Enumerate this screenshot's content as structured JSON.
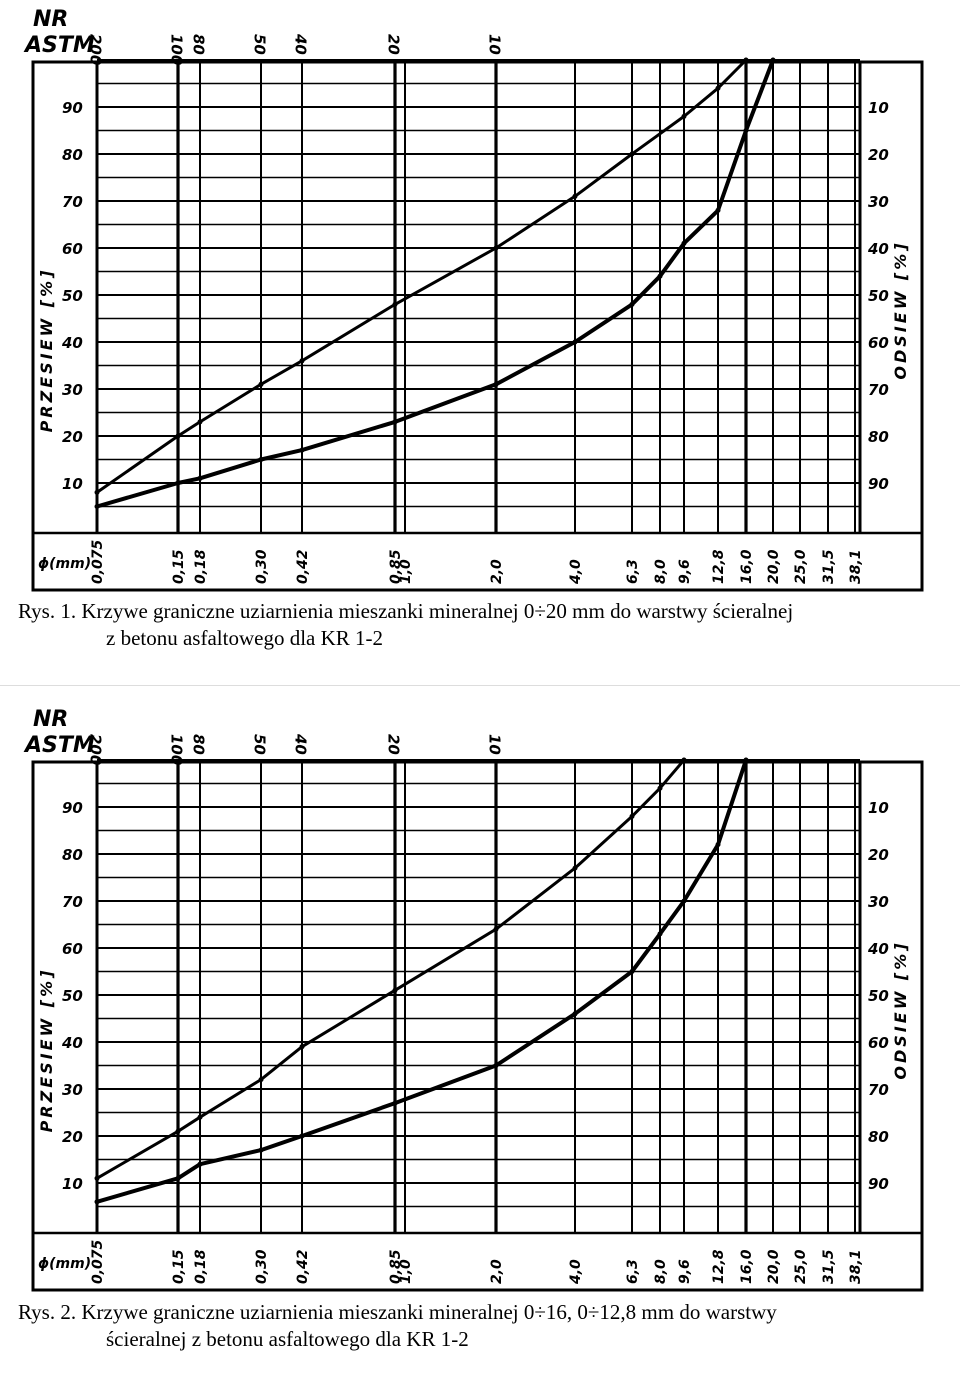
{
  "chart_data": [
    {
      "type": "line",
      "title": "Rys. 1. Krzywe graniczne uziarnienia mieszanki mineralnej 0÷20 mm do warstwy ścieralnej z betonu asfaltowego dla KR 1-2",
      "header": [
        "NR",
        "ASTM"
      ],
      "astm_labels": [
        "200",
        "100",
        "80",
        "50",
        "40",
        "20",
        "10"
      ],
      "ylabel": "PRZESIEW [%]",
      "ylabel_right": "ODSIEW [%]",
      "xlabel": "ϕ(mm)",
      "sieves": [
        "0,075",
        "0,15",
        "0,18",
        "0,30",
        "0,42",
        "0,85",
        "1,0",
        "2,0",
        "4,0",
        "6,3",
        "8,0",
        "9,6",
        "12,8",
        "16,0",
        "20,0",
        "25,0",
        "31,5",
        "38,1"
      ],
      "yticks_left": [
        "10",
        "20",
        "30",
        "40",
        "50",
        "60",
        "70",
        "80",
        "90"
      ],
      "yticks_right": [
        "90",
        "80",
        "70",
        "60",
        "50",
        "40",
        "30",
        "20",
        "10"
      ],
      "ylim": [
        0,
        100
      ],
      "grid": true,
      "series": [
        {
          "name": "upper",
          "points": [
            [
              0.075,
              8
            ],
            [
              0.15,
              20
            ],
            [
              0.18,
              23
            ],
            [
              0.3,
              31
            ],
            [
              0.42,
              36
            ],
            [
              0.85,
              48
            ],
            [
              2.0,
              60
            ],
            [
              4.0,
              71
            ],
            [
              6.3,
              80
            ],
            [
              9.6,
              88
            ],
            [
              12.8,
              94
            ],
            [
              16.0,
              100
            ]
          ]
        },
        {
          "name": "lower",
          "points": [
            [
              0.075,
              5
            ],
            [
              0.15,
              10
            ],
            [
              0.18,
              11
            ],
            [
              0.3,
              15
            ],
            [
              0.42,
              17
            ],
            [
              0.85,
              23
            ],
            [
              2.0,
              31
            ],
            [
              4.0,
              40
            ],
            [
              6.3,
              48
            ],
            [
              8.0,
              54
            ],
            [
              9.6,
              61
            ],
            [
              12.8,
              68
            ],
            [
              16.0,
              85
            ],
            [
              20.0,
              100
            ]
          ]
        }
      ]
    },
    {
      "type": "line",
      "title": "Rys. 2. Krzywe graniczne uziarnienia mieszanki mineralnej 0÷16, 0÷12,8 mm do warstwy ścieralnej z betonu asfaltowego dla KR 1-2",
      "header": [
        "NR",
        "ASTM"
      ],
      "astm_labels": [
        "200",
        "100",
        "80",
        "50",
        "40",
        "20",
        "10"
      ],
      "ylabel": "PRZESIEW [%]",
      "ylabel_right": "ODSIEW [%]",
      "xlabel": "ϕ(mm)",
      "sieves": [
        "0,075",
        "0,15",
        "0,18",
        "0,30",
        "0,42",
        "0,85",
        "1,0",
        "2,0",
        "4,0",
        "6,3",
        "8,0",
        "9,6",
        "12,8",
        "16,0",
        "20,0",
        "25,0",
        "31,5",
        "38,1"
      ],
      "yticks_left": [
        "10",
        "20",
        "30",
        "40",
        "50",
        "60",
        "70",
        "80",
        "90"
      ],
      "yticks_right": [
        "90",
        "80",
        "70",
        "60",
        "50",
        "40",
        "30",
        "20",
        "10"
      ],
      "ylim": [
        0,
        100
      ],
      "grid": true,
      "series": [
        {
          "name": "upper",
          "points": [
            [
              0.075,
              11
            ],
            [
              0.15,
              21
            ],
            [
              0.18,
              24
            ],
            [
              0.3,
              32
            ],
            [
              0.42,
              39
            ],
            [
              0.85,
              51
            ],
            [
              2.0,
              64
            ],
            [
              4.0,
              77
            ],
            [
              6.3,
              88
            ],
            [
              8.0,
              94
            ],
            [
              9.6,
              100
            ]
          ]
        },
        {
          "name": "lower",
          "points": [
            [
              0.075,
              6
            ],
            [
              0.15,
              11
            ],
            [
              0.18,
              14
            ],
            [
              0.3,
              17
            ],
            [
              0.42,
              20
            ],
            [
              0.85,
              27
            ],
            [
              2.0,
              35
            ],
            [
              4.0,
              46
            ],
            [
              6.3,
              55
            ],
            [
              8.0,
              63
            ],
            [
              9.6,
              70
            ],
            [
              12.8,
              82
            ],
            [
              16.0,
              100
            ]
          ]
        }
      ]
    }
  ],
  "captions": [
    {
      "line1": "Rys. 1. Krzywe graniczne uziarnienia mieszanki mineralnej 0÷20 mm do warstwy ścieralnej",
      "line2": "z betonu asfaltowego dla KR 1-2"
    },
    {
      "line1": "Rys. 2. Krzywe graniczne uziarnienia mieszanki mineralnej 0÷16, 0÷12,8 mm do warstwy",
      "line2": "ścieralnej z betonu asfaltowego dla KR 1-2"
    }
  ]
}
